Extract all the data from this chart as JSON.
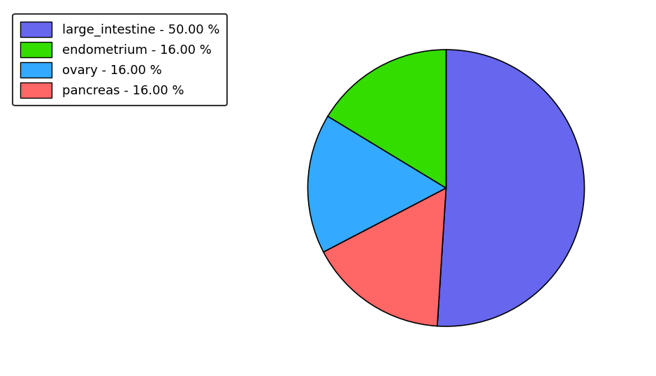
{
  "labels": [
    "large_intestine",
    "pancreas",
    "ovary",
    "endometrium"
  ],
  "values": [
    50.0,
    16.0,
    16.0,
    16.0
  ],
  "colors": [
    "#6666ee",
    "#ff6666",
    "#33aaff",
    "#33dd00"
  ],
  "legend_labels": [
    "large_intestine - 50.00 %",
    "endometrium - 16.00 %",
    "ovary - 16.00 %",
    "pancreas - 16.00 %"
  ],
  "legend_colors": [
    "#6666ee",
    "#33dd00",
    "#33aaff",
    "#ff6666"
  ],
  "startangle": 90,
  "figsize": [
    9.39,
    5.38
  ],
  "dpi": 100
}
